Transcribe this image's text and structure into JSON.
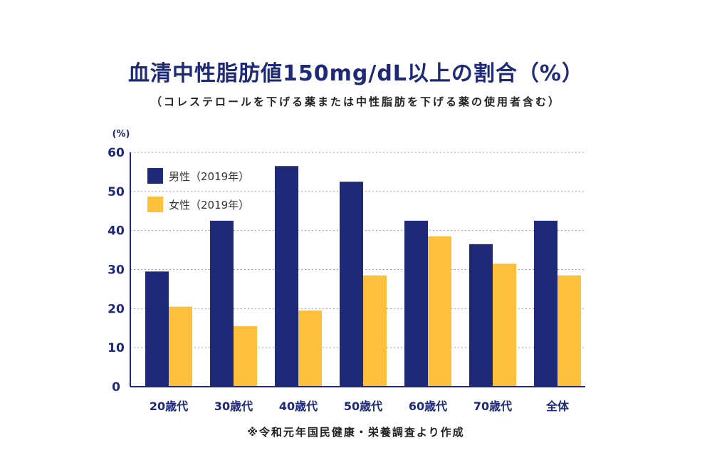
{
  "title": "血清中性脂肪値150mg/dL以上の割合（%）",
  "subtitle": "（コレステロールを下げる薬または中性脂肪を下げる薬の使用者含む）",
  "source": "※令和元年国民健康・栄養調査より作成",
  "chart_data": {
    "type": "bar",
    "categories": [
      "20歳代",
      "30歳代",
      "40歳代",
      "50歳代",
      "60歳代",
      "70歳代",
      "全体"
    ],
    "series": [
      {
        "name": "男性（2019年）",
        "color": "#1e2a78",
        "values": [
          29.5,
          42.5,
          56.5,
          52.5,
          42.5,
          36.5,
          42.5
        ]
      },
      {
        "name": "女性（2019年）",
        "color": "#fcc03d",
        "values": [
          20.5,
          15.5,
          19.5,
          28.5,
          38.5,
          31.5,
          28.5
        ]
      }
    ],
    "ylabel": "(%)",
    "ylim": [
      0,
      60
    ],
    "yticks": [
      0,
      10,
      20,
      30,
      40,
      50,
      60
    ],
    "grid": true,
    "legend_position": "top-left"
  }
}
